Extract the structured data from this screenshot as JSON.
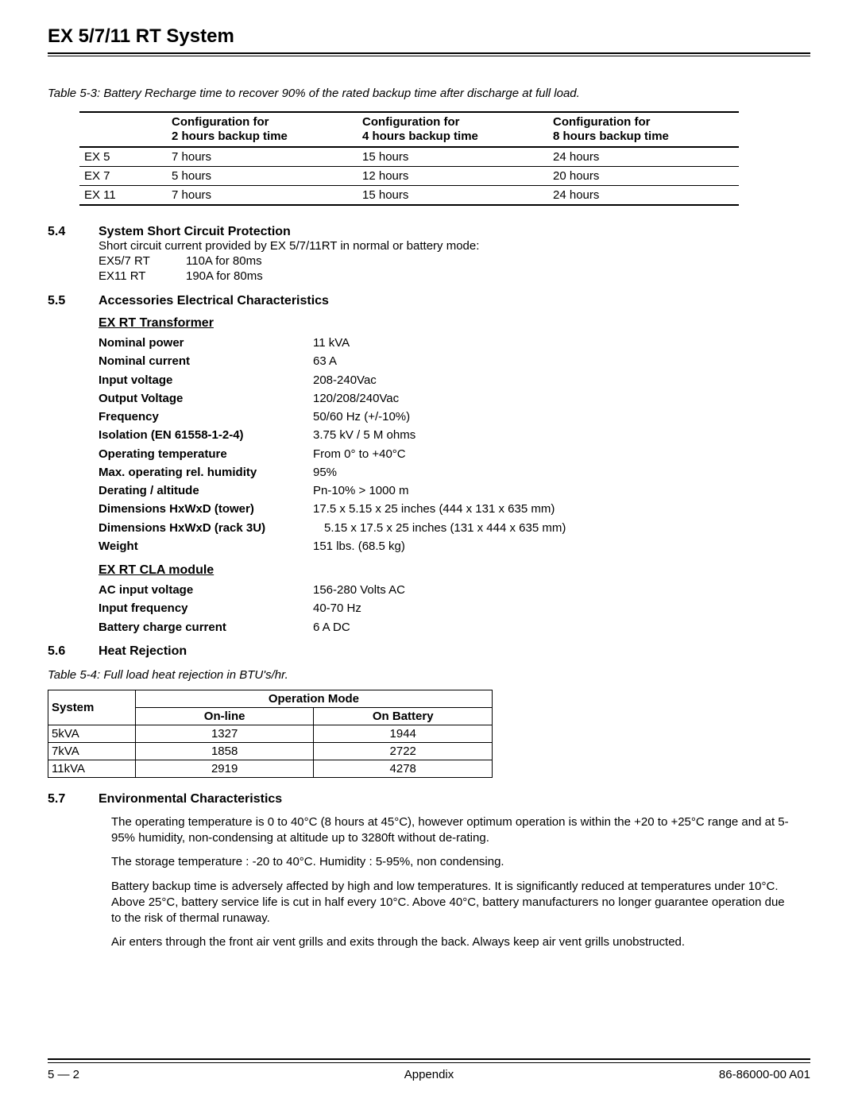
{
  "title": "EX 5/7/11 RT System",
  "table53": {
    "caption": "Table 5-3:  Battery Recharge time to recover 90% of the rated backup time after discharge at full load.",
    "headers": [
      "",
      "Configuration for\n2 hours backup time",
      "Configuration for\n4 hours backup time",
      "Configuration for\n8 hours backup time"
    ],
    "rows": [
      [
        "EX 5",
        "7 hours",
        "15 hours",
        "24 hours"
      ],
      [
        "EX 7",
        "5 hours",
        "12 hours",
        "20 hours"
      ],
      [
        "EX 11",
        "7 hours",
        "15 hours",
        "24 hours"
      ]
    ]
  },
  "sec54": {
    "num": "5.4",
    "title": "System Short Circuit Protection",
    "intro": "Short circuit current provided by EX 5/7/11RT in normal or battery mode:",
    "rows": [
      [
        "EX5/7 RT",
        "110A for 80ms"
      ],
      [
        "EX11 RT",
        "190A for 80ms"
      ]
    ]
  },
  "sec55": {
    "num": "5.5",
    "title": "Accessories Electrical Characteristics",
    "transformer": {
      "heading": "EX RT Transformer",
      "rows": [
        {
          "k": "Nominal power",
          "v": "11 kVA"
        },
        {
          "k": "Nominal current",
          "v": "63 A"
        },
        {
          "k": "Input voltage",
          "v": "208-240Vac"
        },
        {
          "k": "Output Voltage",
          "v": "120/208/240Vac"
        },
        {
          "k": "Frequency",
          "v": "50/60 Hz (+/-10%)"
        },
        {
          "k": "Isolation (EN 61558-1-2-4)",
          "v": "3.75 kV / 5 M ohms"
        },
        {
          "k": "Operating temperature",
          "v": "From 0° to +40°C"
        },
        {
          "k": "Max. operating rel. humidity",
          "v": "95%"
        },
        {
          "k": "Derating / altitude",
          "v": "Pn-10% > 1000 m"
        },
        {
          "k": "Dimensions HxWxD (tower)",
          "v": "17.5 x 5.15 x 25 inches (444 x 131 x 635 mm)"
        },
        {
          "k": "Dimensions HxWxD (rack 3U)",
          "v": "5.15 x 17.5 x 25 inches (131 x 444 x 635 mm)",
          "indent": true
        },
        {
          "k": "Weight",
          "v": "151 lbs. (68.5 kg)"
        }
      ]
    },
    "cla": {
      "heading": "EX RT CLA module",
      "rows": [
        {
          "k": "AC input voltage",
          "v": "156-280 Volts AC"
        },
        {
          "k": "Input frequency",
          "v": "40-70 Hz"
        },
        {
          "k": "Battery charge current",
          "v": "6 A DC"
        }
      ]
    }
  },
  "sec56": {
    "num": "5.6",
    "title": "Heat Rejection",
    "caption": "Table 5-4:  Full load heat rejection in BTU's/hr.",
    "headers": {
      "system": "System",
      "opmode": "Operation Mode",
      "online": "On-line",
      "onbatt": "On Battery"
    },
    "rows": [
      [
        "5kVA",
        "1327",
        "1944"
      ],
      [
        "7kVA",
        "1858",
        "2722"
      ],
      [
        "11kVA",
        "2919",
        "4278"
      ]
    ]
  },
  "sec57": {
    "num": "5.7",
    "title": "Environmental Characteristics",
    "paras": [
      "The operating temperature is 0 to 40°C (8 hours at 45°C), however optimum operation is within the +20 to +25°C range and at 5-95% humidity, non-condensing at altitude up to 3280ft without de-rating.",
      "The storage temperature : -20 to 40°C.   Humidity : 5-95%, non condensing.",
      "Battery backup time is adversely affected by high and low temperatures. It is significantly reduced at temperatures under 10°C. Above 25°C, battery service life is cut in half every 10°C. Above 40°C, battery manufacturers no longer guarantee operation due to the risk of thermal runaway.",
      "Air enters through the front air vent grills and exits through the back. Always keep air vent grills unobstructed."
    ]
  },
  "footer": {
    "left": "5 — 2",
    "center": "Appendix",
    "right": "86-86000-00 A01"
  }
}
